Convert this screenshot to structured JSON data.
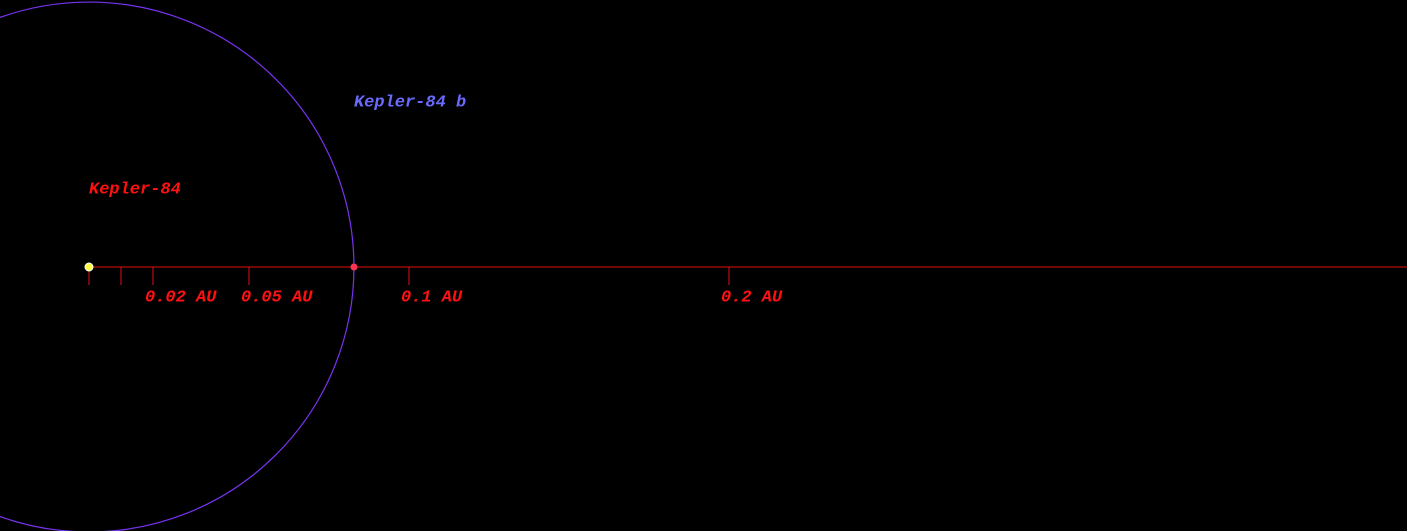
{
  "star": {
    "name": "Kepler-84"
  },
  "planet": {
    "name": "Kepler-84 b",
    "semi_major_axis": 0.0828
  },
  "scale": {
    "ticks": [
      {
        "value": 0
      },
      {
        "value": 0.01
      },
      {
        "value": 0.02,
        "label": "0.02 AU"
      },
      {
        "value": 0.05,
        "label": "0.05 AU"
      },
      {
        "value": 0.1,
        "label": "0.1 AU"
      },
      {
        "value": 0.2,
        "label": "0.2 AU"
      }
    ]
  }
}
